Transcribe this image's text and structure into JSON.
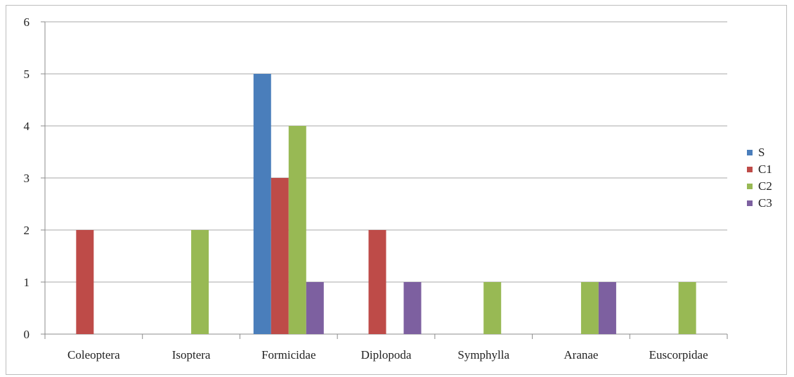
{
  "chart_data": {
    "type": "bar",
    "title": "",
    "xlabel": "",
    "ylabel": "",
    "categories": [
      "Coleoptera",
      "Isoptera",
      "Formicidae",
      "Diplopoda",
      "Symphylla",
      "Aranae",
      "Euscorpidae"
    ],
    "series": [
      {
        "name": "S",
        "color": "#4a7ebb",
        "values": [
          0,
          0,
          5,
          0,
          0,
          0,
          0
        ]
      },
      {
        "name": "C1",
        "color": "#be4b48",
        "values": [
          2,
          0,
          3,
          2,
          0,
          0,
          0
        ]
      },
      {
        "name": "C2",
        "color": "#98b954",
        "values": [
          0,
          2,
          4,
          0,
          1,
          1,
          1
        ]
      },
      {
        "name": "C3",
        "color": "#7d60a0",
        "values": [
          0,
          0,
          1,
          1,
          0,
          1,
          0
        ]
      }
    ],
    "ylim": [
      0,
      6
    ],
    "yticks": [
      0,
      1,
      2,
      3,
      4,
      5,
      6
    ],
    "grid": true,
    "legend_position": "right"
  }
}
